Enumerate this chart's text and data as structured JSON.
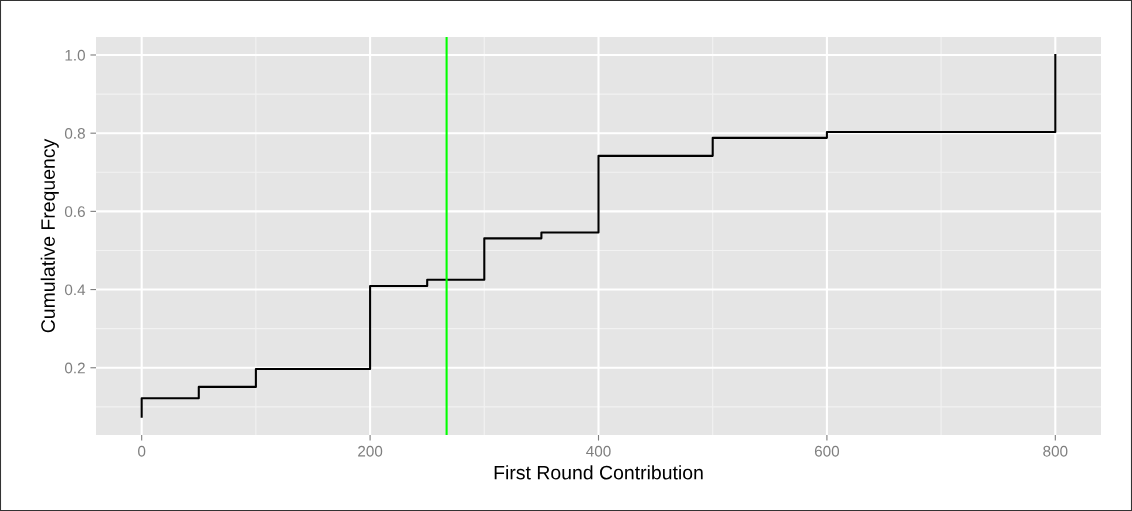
{
  "chart_data": {
    "type": "step",
    "xlabel": "First Round Contribution",
    "ylabel": "Cumulative Frequency",
    "x": [
      0,
      0,
      50,
      100,
      200,
      250,
      300,
      350,
      400,
      500,
      600,
      800
    ],
    "series": [
      {
        "color": "#000000",
        "values": [
          0.075,
          0.122,
          0.151,
          0.197,
          0.409,
          0.425,
          0.531,
          0.546,
          0.742,
          0.788,
          0.803,
          1.0
        ]
      }
    ],
    "xlim": [
      -40,
      840
    ],
    "ylim": [
      0.028,
      1.046
    ],
    "xticks": [
      0,
      200,
      400,
      600,
      800
    ],
    "yticks": [
      0.2,
      0.4,
      0.6,
      0.8,
      {
        "value": 1.0,
        "label": "1.0"
      }
    ],
    "ref_lines": [
      {
        "axis": "x",
        "value": 267,
        "color": "#00ff00"
      }
    ],
    "grid": true
  }
}
